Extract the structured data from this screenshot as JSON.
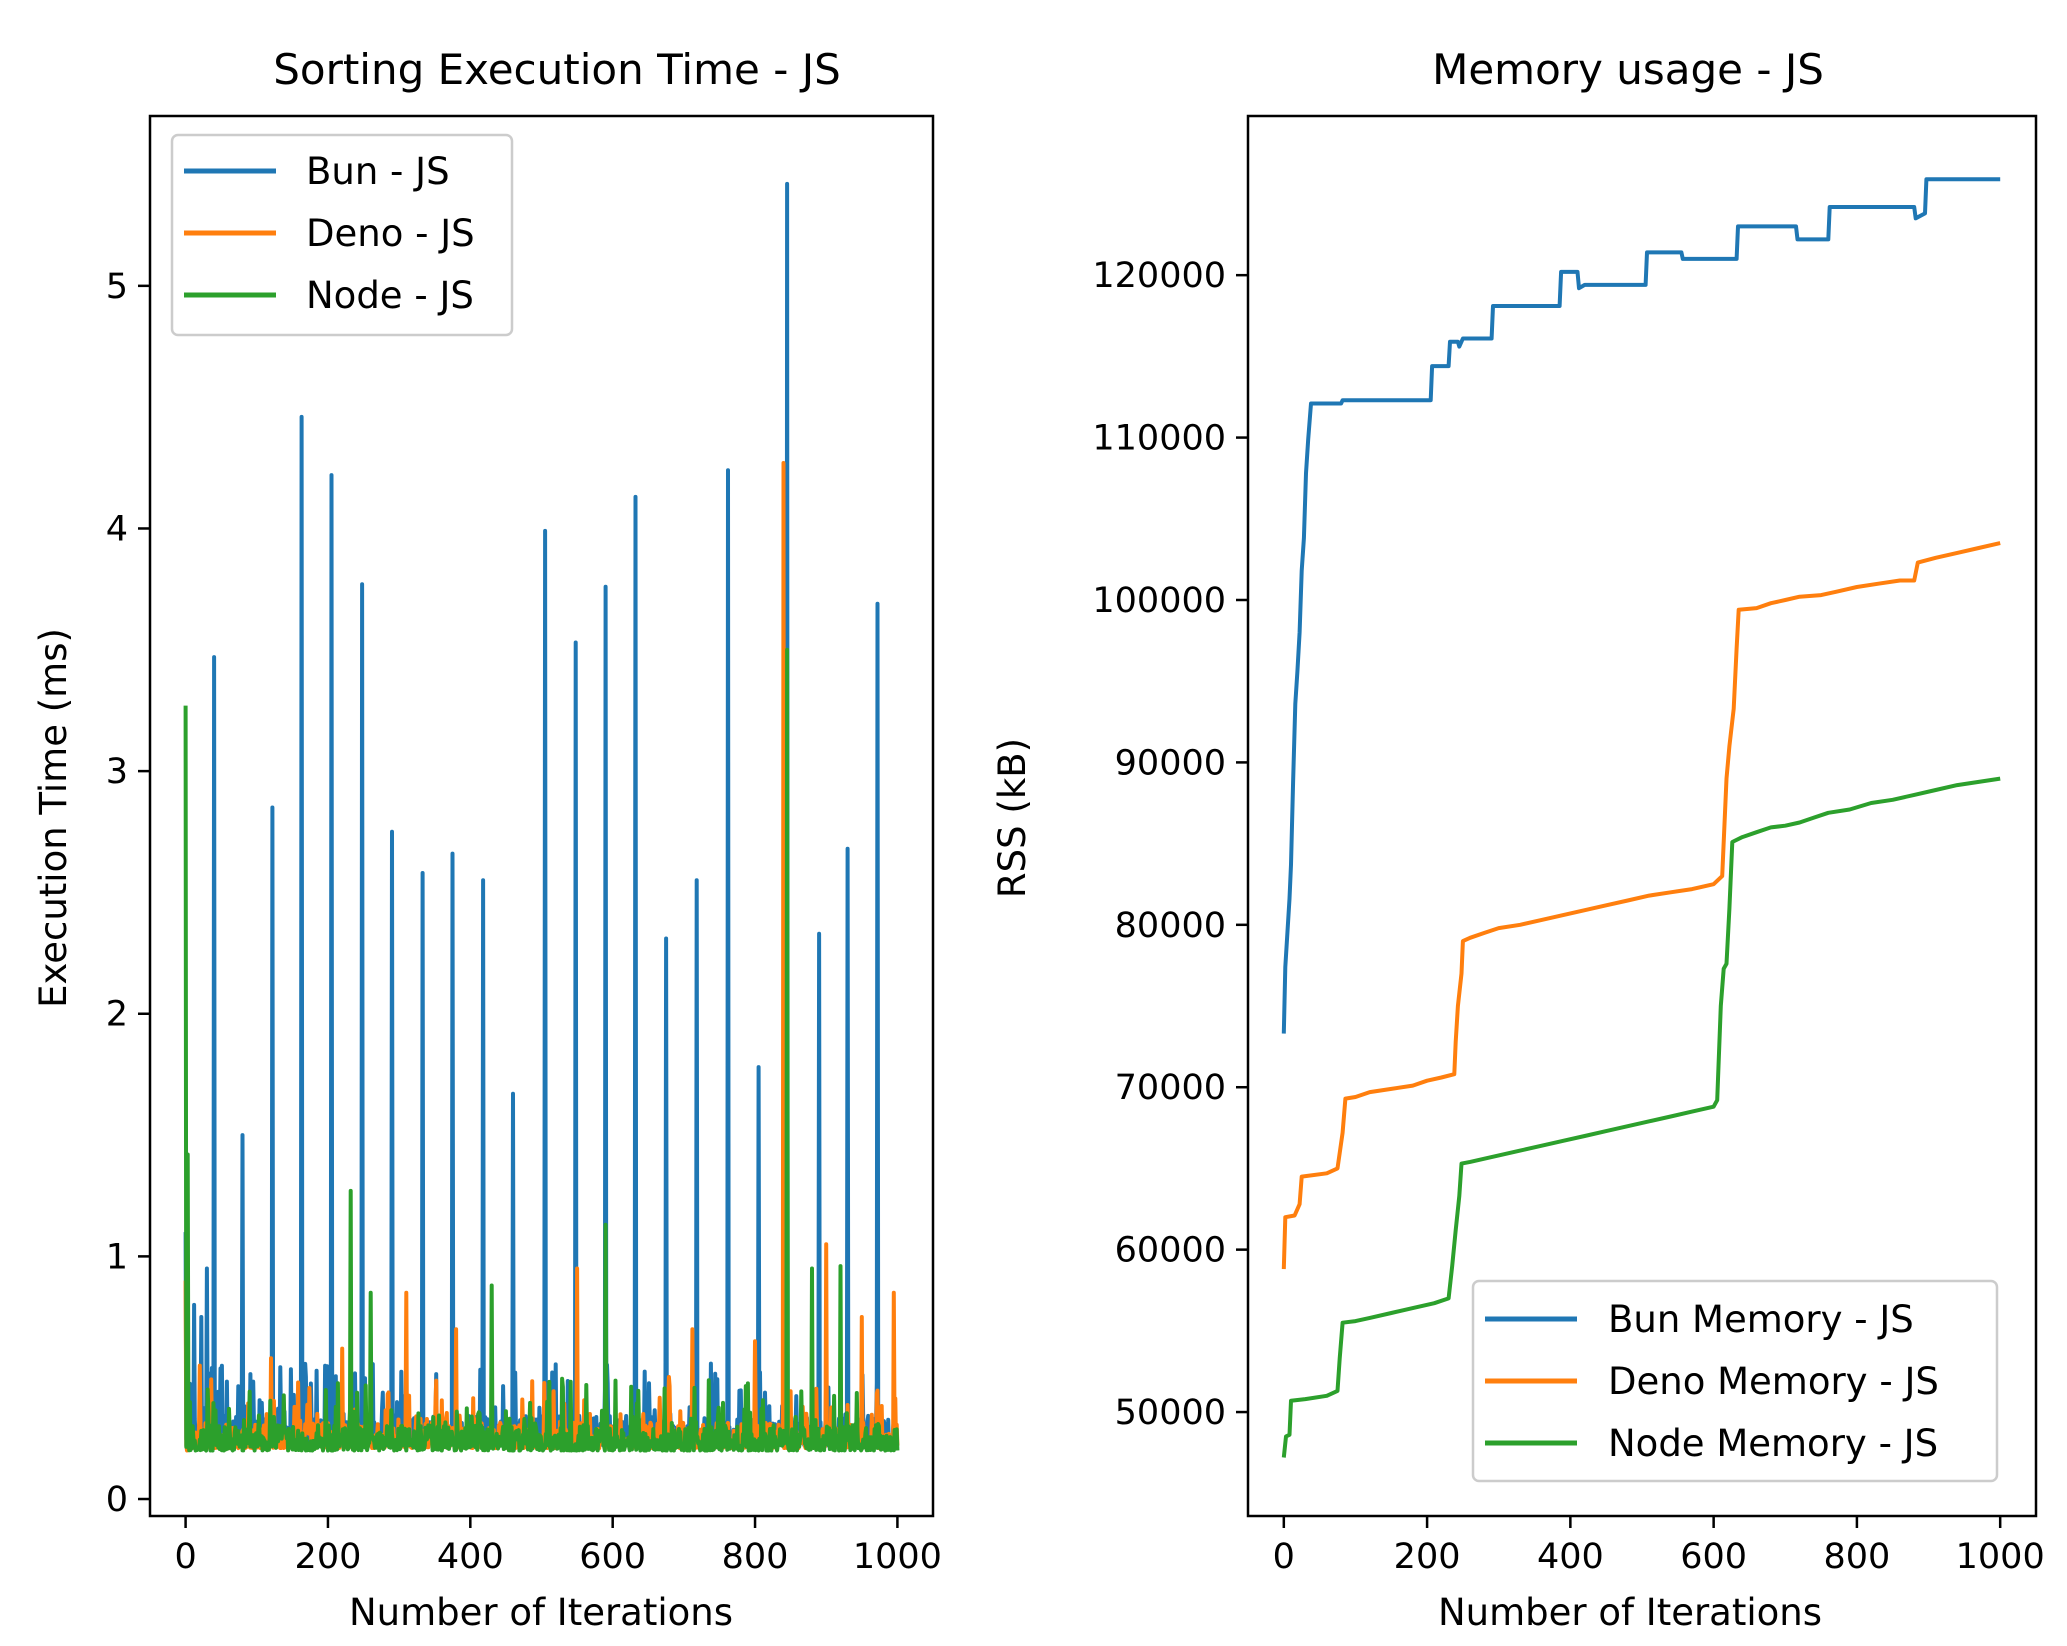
{
  "chart_data": [
    {
      "type": "line",
      "title": "Sorting Execution Time - JS",
      "xlabel": "Number of Iterations",
      "ylabel": "Execution Time (ms)",
      "xlim": [
        -50,
        1050
      ],
      "ylim": [
        -0.07,
        5.7
      ],
      "xticks": [
        0,
        200,
        400,
        600,
        800,
        1000
      ],
      "xtick_labels": [
        "0",
        "200",
        "400",
        "600",
        "800",
        "1000"
      ],
      "yticks": [
        0,
        1,
        2,
        3,
        4,
        5
      ],
      "ytick_labels": [
        "0",
        "1",
        "2",
        "3",
        "4",
        "5"
      ],
      "legend_position": "upper-left",
      "series": [
        {
          "name": "Bun - JS",
          "color": "#1f77b4",
          "baseline": 0.22,
          "noise_max": 0.35,
          "points": [
            [
              0,
              1.1
            ],
            [
              2,
              0.35
            ],
            [
              12,
              0.8
            ],
            [
              22,
              0.75
            ],
            [
              30,
              0.95
            ],
            [
              40,
              3.47
            ],
            [
              80,
              1.5
            ],
            [
              122,
              2.85
            ],
            [
              163,
              4.46
            ],
            [
              205,
              4.22
            ],
            [
              248,
              3.77
            ],
            [
              290,
              2.75
            ],
            [
              333,
              2.58
            ],
            [
              375,
              2.66
            ],
            [
              418,
              2.55
            ],
            [
              460,
              1.67
            ],
            [
              505,
              3.99
            ],
            [
              548,
              3.53
            ],
            [
              590,
              3.76
            ],
            [
              632,
              4.13
            ],
            [
              675,
              2.31
            ],
            [
              718,
              2.55
            ],
            [
              762,
              4.24
            ],
            [
              805,
              1.78
            ],
            [
              845,
              5.42
            ],
            [
              890,
              2.33
            ],
            [
              930,
              2.68
            ],
            [
              972,
              3.69
            ],
            [
              1000,
              0.22
            ]
          ]
        },
        {
          "name": "Deno - JS",
          "color": "#ff7f0e",
          "baseline": 0.21,
          "noise_max": 0.3,
          "points": [
            [
              0,
              0.9
            ],
            [
              2,
              0.2
            ],
            [
              20,
              0.55
            ],
            [
              120,
              0.58
            ],
            [
              220,
              0.62
            ],
            [
              310,
              0.85
            ],
            [
              380,
              0.7
            ],
            [
              550,
              0.95
            ],
            [
              712,
              0.7
            ],
            [
              800,
              0.65
            ],
            [
              840,
              4.27
            ],
            [
              900,
              1.05
            ],
            [
              950,
              0.75
            ],
            [
              995,
              0.85
            ],
            [
              1000,
              0.22
            ]
          ]
        },
        {
          "name": "Node - JS",
          "color": "#2ca02c",
          "baseline": 0.2,
          "noise_max": 0.3,
          "points": [
            [
              0,
              3.27
            ],
            [
              3,
              1.42
            ],
            [
              6,
              0.4
            ],
            [
              232,
              1.27
            ],
            [
              260,
              0.85
            ],
            [
              430,
              0.88
            ],
            [
              590,
              1.13
            ],
            [
              845,
              3.5
            ],
            [
              880,
              0.95
            ],
            [
              920,
              0.96
            ],
            [
              1000,
              0.2
            ]
          ]
        }
      ]
    },
    {
      "type": "line",
      "title": "Memory usage - JS",
      "xlabel": "Number of Iterations",
      "ylabel": "RSS (kB)",
      "xlim": [
        -50,
        1050
      ],
      "ylim": [
        43600,
        129800
      ],
      "xticks": [
        0,
        200,
        400,
        600,
        800,
        1000
      ],
      "xtick_labels": [
        "0",
        "200",
        "400",
        "600",
        "800",
        "1000"
      ],
      "yticks": [
        50000,
        60000,
        70000,
        80000,
        90000,
        100000,
        110000,
        120000
      ],
      "ytick_labels": [
        "50000",
        "60000",
        "70000",
        "80000",
        "90000",
        "100000",
        "110000",
        "120000"
      ],
      "legend_position": "lower-right",
      "series": [
        {
          "name": "Bun Memory - JS",
          "color": "#1f77b4",
          "points": [
            [
              0,
              73300
            ],
            [
              2,
              77400
            ],
            [
              5,
              79500
            ],
            [
              8,
              81600
            ],
            [
              10,
              83700
            ],
            [
              13,
              88800
            ],
            [
              16,
              93600
            ],
            [
              19,
              95600
            ],
            [
              22,
              98000
            ],
            [
              25,
              101800
            ],
            [
              28,
              103800
            ],
            [
              31,
              107800
            ],
            [
              34,
              109900
            ],
            [
              38,
              112100
            ],
            [
              80,
              112100
            ],
            [
              82,
              112300
            ],
            [
              205,
              112300
            ],
            [
              207,
              114400
            ],
            [
              230,
              114400
            ],
            [
              232,
              115900
            ],
            [
              243,
              115900
            ],
            [
              245,
              115600
            ],
            [
              250,
              116100
            ],
            [
              290,
              116100
            ],
            [
              292,
              118100
            ],
            [
              385,
              118100
            ],
            [
              387,
              120200
            ],
            [
              410,
              120200
            ],
            [
              412,
              119200
            ],
            [
              420,
              119400
            ],
            [
              505,
              119400
            ],
            [
              507,
              121400
            ],
            [
              555,
              121400
            ],
            [
              557,
              121000
            ],
            [
              632,
              121000
            ],
            [
              634,
              123000
            ],
            [
              715,
              123000
            ],
            [
              717,
              122200
            ],
            [
              760,
              122200
            ],
            [
              762,
              124200
            ],
            [
              880,
              124200
            ],
            [
              882,
              123500
            ],
            [
              895,
              123800
            ],
            [
              897,
              125900
            ],
            [
              1000,
              125900
            ]
          ]
        },
        {
          "name": "Deno Memory - JS",
          "color": "#ff7f0e",
          "points": [
            [
              0,
              58800
            ],
            [
              2,
              62000
            ],
            [
              15,
              62100
            ],
            [
              22,
              62800
            ],
            [
              25,
              64500
            ],
            [
              60,
              64700
            ],
            [
              75,
              65000
            ],
            [
              82,
              67200
            ],
            [
              86,
              69300
            ],
            [
              100,
              69400
            ],
            [
              120,
              69700
            ],
            [
              150,
              69900
            ],
            [
              180,
              70100
            ],
            [
              200,
              70400
            ],
            [
              220,
              70600
            ],
            [
              238,
              70800
            ],
            [
              240,
              72800
            ],
            [
              243,
              75000
            ],
            [
              248,
              77000
            ],
            [
              250,
              79000
            ],
            [
              260,
              79200
            ],
            [
              280,
              79500
            ],
            [
              300,
              79800
            ],
            [
              330,
              80000
            ],
            [
              360,
              80300
            ],
            [
              390,
              80600
            ],
            [
              420,
              80900
            ],
            [
              450,
              81200
            ],
            [
              480,
              81500
            ],
            [
              510,
              81800
            ],
            [
              540,
              82000
            ],
            [
              570,
              82200
            ],
            [
              600,
              82500
            ],
            [
              612,
              83000
            ],
            [
              618,
              89000
            ],
            [
              622,
              91000
            ],
            [
              628,
              93300
            ],
            [
              632,
              97000
            ],
            [
              635,
              99400
            ],
            [
              660,
              99500
            ],
            [
              680,
              99800
            ],
            [
              700,
              100000
            ],
            [
              720,
              100200
            ],
            [
              750,
              100300
            ],
            [
              770,
              100500
            ],
            [
              800,
              100800
            ],
            [
              830,
              101000
            ],
            [
              860,
              101200
            ],
            [
              880,
              101200
            ],
            [
              885,
              102300
            ],
            [
              910,
              102600
            ],
            [
              940,
              102900
            ],
            [
              970,
              103200
            ],
            [
              1000,
              103500
            ]
          ]
        },
        {
          "name": "Node Memory - JS",
          "color": "#2ca02c",
          "points": [
            [
              0,
              47200
            ],
            [
              3,
              48500
            ],
            [
              8,
              48600
            ],
            [
              10,
              50700
            ],
            [
              30,
              50800
            ],
            [
              60,
              51000
            ],
            [
              75,
              51300
            ],
            [
              78,
              53300
            ],
            [
              82,
              55500
            ],
            [
              100,
              55600
            ],
            [
              120,
              55800
            ],
            [
              150,
              56100
            ],
            [
              180,
              56400
            ],
            [
              210,
              56700
            ],
            [
              230,
              57000
            ],
            [
              235,
              59000
            ],
            [
              240,
              61200
            ],
            [
              245,
              63300
            ],
            [
              248,
              65300
            ],
            [
              260,
              65400
            ],
            [
              280,
              65600
            ],
            [
              300,
              65800
            ],
            [
              330,
              66100
            ],
            [
              360,
              66400
            ],
            [
              390,
              66700
            ],
            [
              420,
              67000
            ],
            [
              450,
              67300
            ],
            [
              480,
              67600
            ],
            [
              510,
              67900
            ],
            [
              540,
              68200
            ],
            [
              570,
              68500
            ],
            [
              600,
              68800
            ],
            [
              605,
              69200
            ],
            [
              610,
              75000
            ],
            [
              614,
              77300
            ],
            [
              618,
              77600
            ],
            [
              622,
              81000
            ],
            [
              626,
              85100
            ],
            [
              640,
              85400
            ],
            [
              660,
              85700
            ],
            [
              680,
              86000
            ],
            [
              700,
              86100
            ],
            [
              720,
              86300
            ],
            [
              740,
              86600
            ],
            [
              760,
              86900
            ],
            [
              790,
              87100
            ],
            [
              820,
              87500
            ],
            [
              850,
              87700
            ],
            [
              880,
              88000
            ],
            [
              910,
              88300
            ],
            [
              940,
              88600
            ],
            [
              970,
              88800
            ],
            [
              1000,
              89000
            ]
          ]
        }
      ]
    }
  ]
}
